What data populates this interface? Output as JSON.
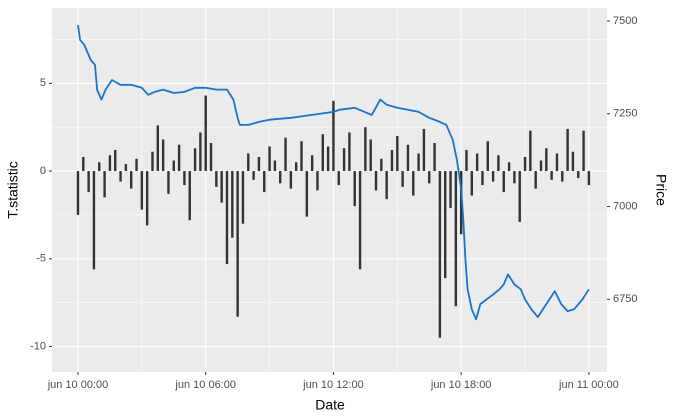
{
  "chart_data": {
    "type": "combo",
    "x_label": "Date",
    "y_label": "T.statistic",
    "y2_label": "Price",
    "xlim": [
      -1.22,
      24.85
    ],
    "xticks": [
      {
        "value": 0,
        "label": "jun 10 00:00"
      },
      {
        "value": 6,
        "label": "jun 10 06:00"
      },
      {
        "value": 12,
        "label": "jun 10 12:00"
      },
      {
        "value": 18,
        "label": "jun 10 18:00"
      },
      {
        "value": 24,
        "label": "jun 11 00:00"
      }
    ],
    "ylim": [
      -11.45,
      9.29
    ],
    "yticks": [
      -10,
      -5,
      0,
      5
    ],
    "y2lim": [
      6554,
      7535
    ],
    "y2ticks": [
      6750,
      7000,
      7250,
      7500
    ],
    "grid": true,
    "series": [
      {
        "type": "bar",
        "color": "#333333",
        "x": [
          0,
          0.25,
          0.5,
          0.75,
          1,
          1.25,
          1.5,
          1.75,
          2,
          2.25,
          2.5,
          2.75,
          3,
          3.25,
          3.5,
          3.75,
          4,
          4.25,
          4.5,
          4.75,
          5,
          5.25,
          5.5,
          5.75,
          6,
          6.25,
          6.5,
          6.75,
          7,
          7.25,
          7.5,
          7.75,
          8,
          8.25,
          8.5,
          8.75,
          9,
          9.25,
          9.5,
          9.75,
          10,
          10.25,
          10.5,
          10.75,
          11,
          11.25,
          11.5,
          11.75,
          12,
          12.25,
          12.5,
          12.75,
          13,
          13.25,
          13.5,
          13.75,
          14,
          14.25,
          14.5,
          14.75,
          15,
          15.25,
          15.5,
          15.75,
          16,
          16.25,
          16.5,
          16.75,
          17,
          17.25,
          17.5,
          17.75,
          18,
          18.25,
          18.5,
          18.75,
          19,
          19.25,
          19.5,
          19.75,
          20,
          20.25,
          20.5,
          20.75,
          21,
          21.25,
          21.5,
          21.75,
          22,
          22.25,
          22.5,
          22.75,
          23,
          23.25,
          23.5,
          23.75,
          24
        ],
        "values": [
          -2.5,
          0.8,
          -1.2,
          -5.6,
          0.5,
          -1.5,
          0.9,
          1.2,
          -0.6,
          0.4,
          -1.0,
          0.7,
          -2.2,
          -3.1,
          1.1,
          2.6,
          1.8,
          -1.3,
          0.6,
          1.5,
          -0.8,
          -2.8,
          1.3,
          2.2,
          4.3,
          1.6,
          -0.9,
          -1.8,
          -5.3,
          -3.8,
          -8.3,
          -3.0,
          1.0,
          -0.5,
          0.8,
          -1.2,
          1.4,
          0.6,
          -0.7,
          1.9,
          -1.0,
          0.5,
          1.7,
          -2.6,
          0.9,
          -1.1,
          2.1,
          1.4,
          4.0,
          -0.8,
          1.3,
          2.2,
          -2.0,
          -5.6,
          2.5,
          1.8,
          -1.1,
          0.7,
          -1.6,
          1.2,
          2.0,
          -0.9,
          1.5,
          -1.4,
          1.0,
          2.4,
          -0.7,
          1.6,
          -9.5,
          -6.1,
          -2.1,
          -7.7,
          -3.6,
          1.2,
          -1.4,
          1.0,
          -0.8,
          1.7,
          -0.6,
          0.9,
          -1.2,
          0.5,
          -0.7,
          -2.9,
          0.8,
          2.3,
          -1.0,
          0.6,
          1.3,
          -0.5,
          1.0,
          -0.6,
          2.4,
          1.1,
          -0.4,
          2.3,
          -0.8
        ]
      },
      {
        "type": "line",
        "axis": "y2",
        "color": "#1874cd",
        "x": [
          0,
          0.1,
          0.3,
          0.6,
          0.8,
          0.9,
          1.1,
          1.3,
          1.6,
          2,
          2.5,
          3,
          3.3,
          3.6,
          4,
          4.5,
          5,
          5.5,
          6,
          6.5,
          7,
          7.3,
          7.5,
          7.6,
          8,
          8.5,
          9,
          10,
          11,
          12,
          12.3,
          13,
          13.8,
          14.2,
          14.5,
          15,
          15.5,
          16,
          16.5,
          17,
          17.3,
          17.6,
          17.8,
          18,
          18.1,
          18.2,
          18.3,
          18.5,
          18.7,
          18.9,
          19.2,
          19.5,
          19.8,
          20,
          20.2,
          20.5,
          20.8,
          21,
          21.3,
          21.6,
          22,
          22.4,
          22.7,
          23,
          23.3,
          23.7,
          24
        ],
        "values": [
          7489,
          7449,
          7435,
          7395,
          7382,
          7315,
          7288,
          7315,
          7341,
          7328,
          7328,
          7320,
          7301,
          7309,
          7315,
          7306,
          7309,
          7320,
          7320,
          7315,
          7315,
          7288,
          7239,
          7220,
          7220,
          7228,
          7234,
          7239,
          7247,
          7255,
          7261,
          7266,
          7247,
          7288,
          7274,
          7266,
          7261,
          7255,
          7239,
          7228,
          7220,
          7180,
          7126,
          7046,
          6965,
          6858,
          6777,
          6723,
          6696,
          6737,
          6750,
          6763,
          6777,
          6790,
          6817,
          6790,
          6777,
          6750,
          6723,
          6702,
          6737,
          6772,
          6737,
          6718,
          6723,
          6750,
          6777
        ]
      }
    ]
  }
}
